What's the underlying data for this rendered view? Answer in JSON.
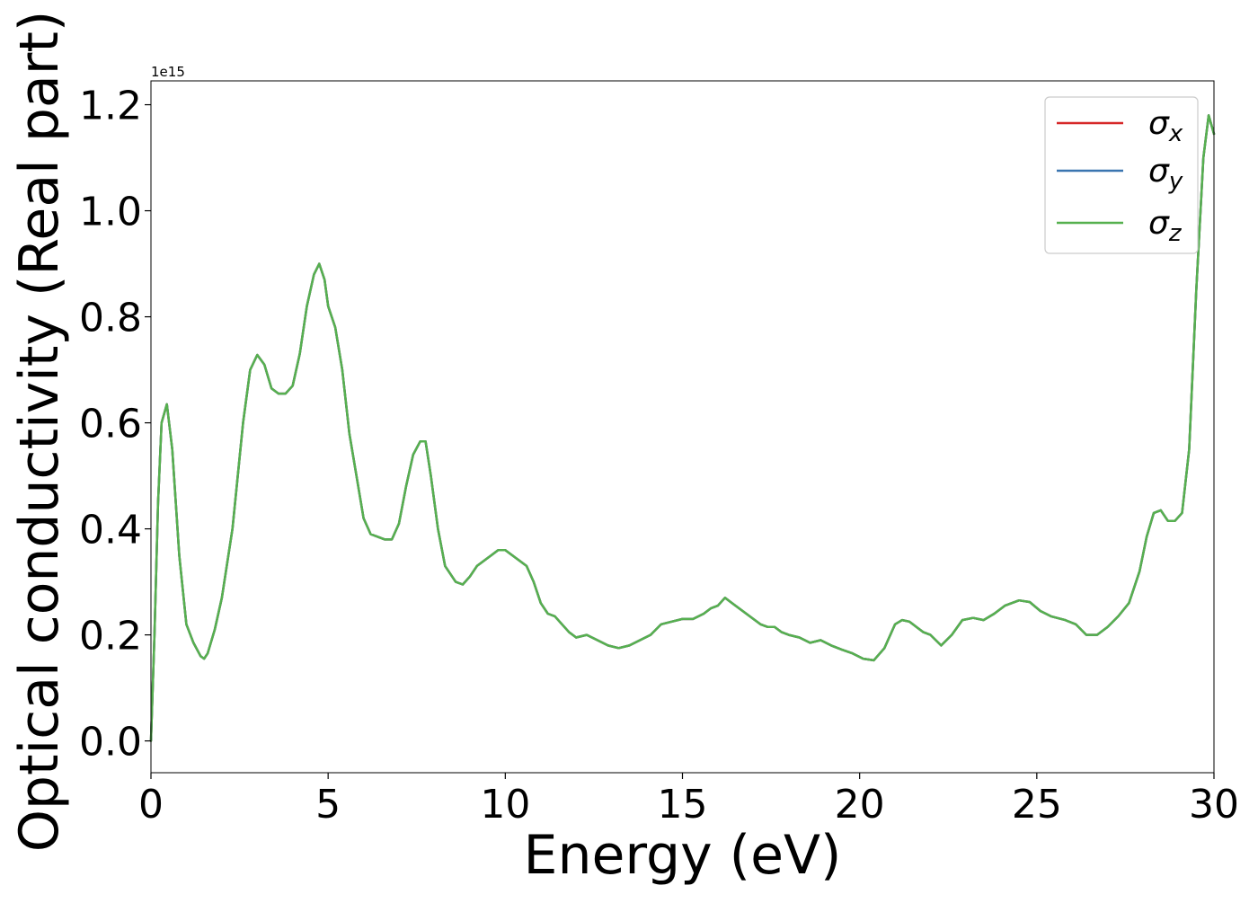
{
  "chart_data": {
    "type": "line",
    "title": "",
    "xlabel": "Energy (eV)",
    "ylabel": "Optical conductivity (Real part)",
    "offset_label": "1e15",
    "xlim": [
      0,
      30
    ],
    "ylim": [
      -0.06,
      1.245
    ],
    "y_scale_multiplier": 1000000000000000.0,
    "xticks": [
      0,
      5,
      10,
      15,
      20,
      25,
      30
    ],
    "xtick_labels": [
      "0",
      "5",
      "10",
      "15",
      "20",
      "25",
      "30"
    ],
    "yticks": [
      0.0,
      0.2,
      0.4,
      0.6,
      0.8,
      1.0,
      1.2
    ],
    "ytick_labels": [
      "0.0",
      "0.2",
      "0.4",
      "0.6",
      "0.8",
      "1.0",
      "1.2"
    ],
    "grid": false,
    "legend_position": "top-right",
    "x": [
      0.0,
      0.1,
      0.2,
      0.3,
      0.45,
      0.6,
      0.8,
      1.0,
      1.2,
      1.4,
      1.5,
      1.6,
      1.8,
      2.0,
      2.3,
      2.6,
      2.8,
      3.0,
      3.2,
      3.4,
      3.6,
      3.8,
      4.0,
      4.2,
      4.4,
      4.6,
      4.75,
      4.9,
      5.0,
      5.2,
      5.4,
      5.6,
      5.8,
      6.0,
      6.2,
      6.4,
      6.6,
      6.8,
      7.0,
      7.2,
      7.4,
      7.6,
      7.75,
      7.9,
      8.1,
      8.3,
      8.6,
      8.8,
      9.0,
      9.2,
      9.4,
      9.6,
      9.8,
      10.0,
      10.2,
      10.4,
      10.6,
      10.8,
      11.0,
      11.2,
      11.4,
      11.6,
      11.8,
      12.0,
      12.3,
      12.6,
      12.9,
      13.2,
      13.5,
      13.8,
      14.1,
      14.4,
      14.7,
      15.0,
      15.3,
      15.6,
      15.8,
      16.0,
      16.2,
      16.4,
      16.6,
      16.8,
      17.0,
      17.2,
      17.4,
      17.6,
      17.8,
      18.0,
      18.3,
      18.6,
      18.9,
      19.2,
      19.5,
      19.8,
      20.1,
      20.4,
      20.7,
      21.0,
      21.2,
      21.4,
      21.6,
      21.8,
      22.0,
      22.3,
      22.6,
      22.9,
      23.2,
      23.5,
      23.8,
      24.1,
      24.5,
      24.8,
      25.1,
      25.4,
      25.8,
      26.1,
      26.4,
      26.7,
      27.0,
      27.3,
      27.6,
      27.9,
      28.1,
      28.3,
      28.5,
      28.7,
      28.9,
      29.1,
      29.3,
      29.5,
      29.7,
      29.85,
      30.0
    ],
    "series": [
      {
        "name": "σ_x",
        "color": "#d62728"
      },
      {
        "name": "σ_y",
        "color": "#3a75b0"
      },
      {
        "name": "σ_z",
        "color": "#56b04f"
      }
    ],
    "y_shared": [
      0.0,
      0.2,
      0.45,
      0.6,
      0.635,
      0.55,
      0.35,
      0.22,
      0.185,
      0.16,
      0.155,
      0.165,
      0.21,
      0.27,
      0.4,
      0.6,
      0.7,
      0.728,
      0.71,
      0.665,
      0.655,
      0.655,
      0.67,
      0.73,
      0.82,
      0.88,
      0.9,
      0.87,
      0.82,
      0.78,
      0.7,
      0.58,
      0.5,
      0.42,
      0.39,
      0.385,
      0.38,
      0.38,
      0.41,
      0.48,
      0.54,
      0.565,
      0.565,
      0.5,
      0.4,
      0.33,
      0.3,
      0.295,
      0.31,
      0.33,
      0.34,
      0.35,
      0.36,
      0.36,
      0.35,
      0.34,
      0.33,
      0.3,
      0.26,
      0.24,
      0.235,
      0.22,
      0.205,
      0.195,
      0.2,
      0.19,
      0.18,
      0.175,
      0.18,
      0.19,
      0.2,
      0.22,
      0.225,
      0.23,
      0.23,
      0.24,
      0.25,
      0.255,
      0.27,
      0.26,
      0.25,
      0.24,
      0.23,
      0.22,
      0.215,
      0.215,
      0.205,
      0.2,
      0.195,
      0.185,
      0.19,
      0.18,
      0.172,
      0.165,
      0.155,
      0.152,
      0.175,
      0.22,
      0.228,
      0.225,
      0.215,
      0.205,
      0.2,
      0.18,
      0.2,
      0.228,
      0.232,
      0.228,
      0.24,
      0.255,
      0.265,
      0.262,
      0.245,
      0.235,
      0.228,
      0.22,
      0.2,
      0.2,
      0.215,
      0.235,
      0.26,
      0.32,
      0.385,
      0.43,
      0.435,
      0.415,
      0.415,
      0.43,
      0.55,
      0.85,
      1.1,
      1.18,
      1.145
    ]
  }
}
